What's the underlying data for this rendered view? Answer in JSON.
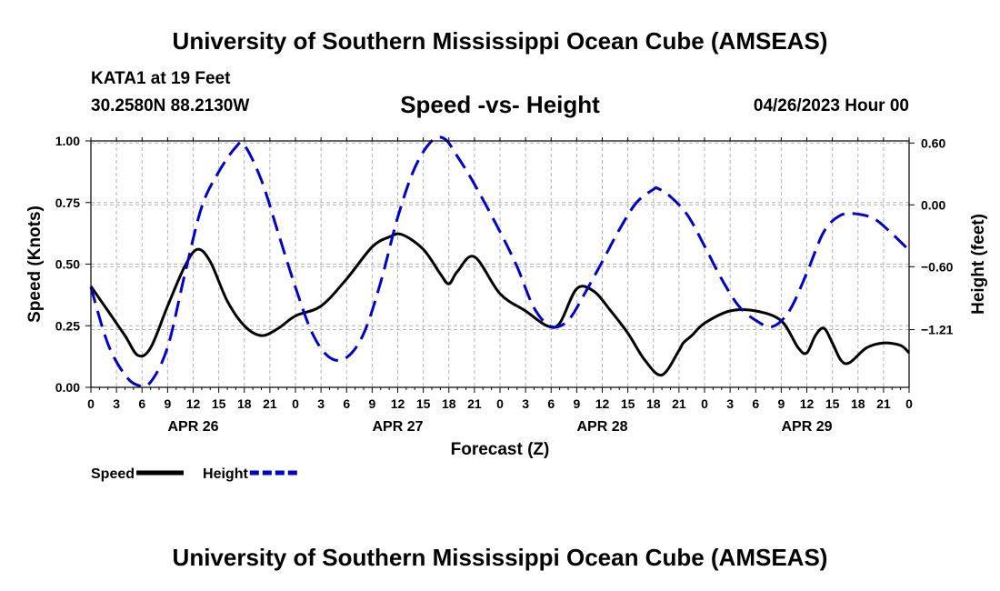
{
  "header": {
    "title": "University of Southern Mississippi Ocean Cube (AMSEAS)",
    "station": "KATA1 at 19 Feet",
    "coords": "30.2580N  88.2130W",
    "subtitle": "Speed -vs- Height",
    "datetime": "04/26/2023 Hour 00"
  },
  "footer": {
    "title": "University of Southern Mississippi Ocean Cube (AMSEAS)"
  },
  "chart_data": {
    "type": "line",
    "xlabel": "Forecast (Z)",
    "ylabel_left": "Speed (Knots)",
    "ylabel_right": "Height (feet)",
    "x_range": [
      0,
      96
    ],
    "x_tick_labels": [
      "0",
      "3",
      "6",
      "9",
      "12",
      "15",
      "18",
      "21",
      "0",
      "3",
      "6",
      "9",
      "12",
      "15",
      "18",
      "21",
      "0",
      "3",
      "6",
      "9",
      "12",
      "15",
      "18",
      "21",
      "0",
      "3",
      "6",
      "9",
      "12",
      "15",
      "18",
      "21",
      "0"
    ],
    "date_labels": [
      {
        "hour": 12,
        "label": "APR 26"
      },
      {
        "hour": 36,
        "label": "APR 27"
      },
      {
        "hour": 60,
        "label": "APR 28"
      },
      {
        "hour": 84,
        "label": "APR 29"
      }
    ],
    "ylim_left": [
      0,
      1.0
    ],
    "y_ticks_left": [
      0.0,
      0.25,
      0.5,
      0.75,
      1.0
    ],
    "y_tick_labels_left": [
      "0.00",
      "0.25",
      "0.50",
      "0.75",
      "1.00"
    ],
    "ylim_right": [
      -1.77,
      0.62
    ],
    "y_ticks_right": [
      0.6,
      0.0,
      -0.6,
      -1.21
    ],
    "y_tick_labels_right": [
      "0.60",
      "0.00",
      "−0.60",
      "−1.21"
    ],
    "grid": true,
    "series": [
      {
        "name": "Speed",
        "axis": "left",
        "color": "#000000",
        "dash": "none",
        "x": [
          0,
          2,
          4,
          5.5,
          7,
          9,
          11,
          12.5,
          14,
          16,
          18,
          20,
          22,
          24,
          27,
          30,
          33,
          35,
          36.5,
          39,
          41,
          42,
          43,
          45,
          48,
          51,
          53.5,
          55,
          57,
          59,
          61,
          63,
          65,
          67,
          69,
          69.5,
          70.5,
          72,
          75,
          78,
          81,
          83,
          84,
          85,
          86,
          87,
          88,
          89,
          91,
          93,
          95,
          96
        ],
        "y": [
          0.41,
          0.31,
          0.21,
          0.13,
          0.16,
          0.33,
          0.49,
          0.56,
          0.51,
          0.35,
          0.25,
          0.21,
          0.24,
          0.29,
          0.33,
          0.44,
          0.57,
          0.61,
          0.62,
          0.56,
          0.46,
          0.42,
          0.47,
          0.53,
          0.38,
          0.31,
          0.25,
          0.26,
          0.4,
          0.39,
          0.31,
          0.22,
          0.11,
          0.05,
          0.15,
          0.18,
          0.21,
          0.26,
          0.31,
          0.31,
          0.27,
          0.16,
          0.14,
          0.21,
          0.24,
          0.18,
          0.11,
          0.1,
          0.16,
          0.18,
          0.17,
          0.14
        ]
      },
      {
        "name": "Height",
        "axis": "right",
        "color": "#0000c8",
        "dash": "18,9",
        "x": [
          0,
          2,
          4,
          5.5,
          7,
          9,
          11,
          13,
          15,
          17,
          18,
          20,
          22,
          24,
          26,
          28,
          30,
          32,
          34,
          36,
          38,
          40,
          41.5,
          43,
          45,
          48,
          50,
          52,
          54,
          56,
          58,
          60,
          62,
          64,
          66,
          66.5,
          68,
          70,
          72,
          74,
          76,
          78,
          80,
          82,
          84,
          86,
          88,
          90,
          92,
          94,
          96
        ],
        "y": [
          -0.8,
          -1.35,
          -1.65,
          -1.75,
          -1.72,
          -1.38,
          -0.68,
          -0.02,
          0.32,
          0.56,
          0.58,
          0.24,
          -0.28,
          -0.8,
          -1.25,
          -1.48,
          -1.48,
          -1.25,
          -0.75,
          -0.12,
          0.36,
          0.62,
          0.64,
          0.47,
          0.2,
          -0.26,
          -0.6,
          -1.0,
          -1.18,
          -1.12,
          -0.85,
          -0.55,
          -0.24,
          0.02,
          0.15,
          0.16,
          0.08,
          -0.1,
          -0.4,
          -0.72,
          -0.98,
          -1.12,
          -1.18,
          -1.02,
          -0.66,
          -0.26,
          -0.1,
          -0.09,
          -0.14,
          -0.28,
          -0.44
        ]
      }
    ],
    "legend": [
      {
        "label": "Speed",
        "color": "#000000",
        "dash": "none"
      },
      {
        "label": "Height",
        "color": "#0000c8",
        "dash": "10,4"
      }
    ]
  }
}
